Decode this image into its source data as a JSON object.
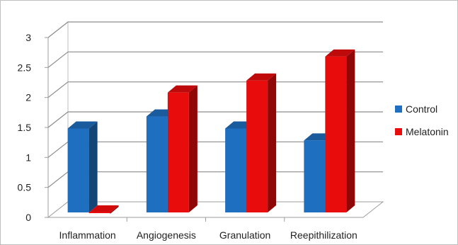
{
  "chart_data": {
    "type": "bar",
    "categories": [
      "Inflammation",
      "Angiogenesis",
      "Granulation",
      "Reepithilization"
    ],
    "series": [
      {
        "name": "Control",
        "values": [
          1.4,
          1.6,
          1.4,
          1.2
        ],
        "color": "#1f6fc0"
      },
      {
        "name": "Melatonin",
        "values": [
          0.0,
          2.0,
          2.2,
          2.6
        ],
        "color": "#e80c0c"
      }
    ],
    "ylim": [
      0,
      3
    ],
    "yticks": [
      "0",
      "0.5",
      "1",
      "1.5",
      "2",
      "2.5",
      "3"
    ],
    "grid": true,
    "legend_position": "right",
    "style": "3d-clustered-column"
  }
}
